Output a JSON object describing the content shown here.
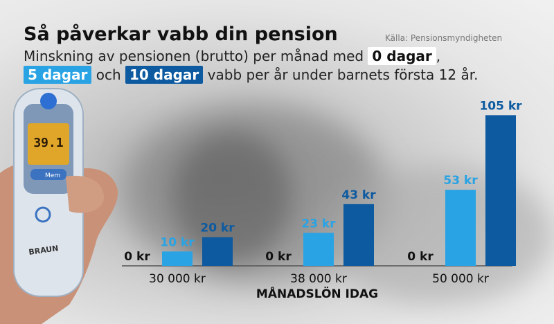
{
  "header": {
    "title": "Så påverkar vabb din pension",
    "source": "Källa: Pensionsmyndigheten",
    "subtitle_line1_start": "Minskning av pensionen (brutto) per månad med ",
    "subtitle_line1_chip": "0 dagar",
    "subtitle_line1_end": ",",
    "subtitle_line2_chip_a": "5 dagar",
    "subtitle_line2_mid": " och ",
    "subtitle_line2_chip_b": "10 dagar",
    "subtitle_line2_end": " vabb per år under barnets första 12 år."
  },
  "photo": {
    "thermometer_brand": "BRAUN",
    "thermometer_display": "39.1",
    "thermometer_button": "Mem"
  },
  "colors": {
    "series_0": "#ffffff",
    "series_5": "#29a3e4",
    "series_10": "#0d5aa0",
    "label_0": "#111111",
    "label_5": "#29a3e4",
    "label_10": "#0d5aa0"
  },
  "chart_data": {
    "type": "bar",
    "categories": [
      "30 000 kr",
      "38 000 kr",
      "50 000 kr"
    ],
    "xlabel": "MÅNADSLÖN IDAG",
    "ylabel": "",
    "ylim": [
      0,
      110
    ],
    "series": [
      {
        "name": "0 dagar",
        "values": [
          0,
          0,
          0
        ],
        "labels": [
          "0 kr",
          "0 kr",
          "0 kr"
        ]
      },
      {
        "name": "5 dagar",
        "values": [
          10,
          23,
          53
        ],
        "labels": [
          "10 kr",
          "23 kr",
          "53 kr"
        ]
      },
      {
        "name": "10 dagar",
        "values": [
          20,
          43,
          105
        ],
        "labels": [
          "20 kr",
          "43 kr",
          "105 kr"
        ]
      }
    ]
  }
}
